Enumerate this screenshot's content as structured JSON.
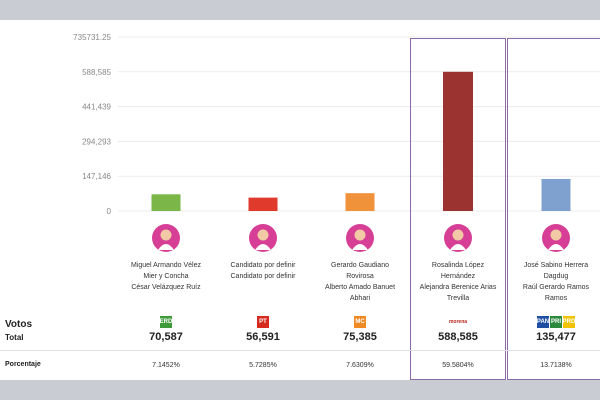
{
  "chart_data": {
    "type": "bar",
    "ylim": [
      0,
      735731.25
    ],
    "y_ticks": [
      0,
      147146,
      294293,
      441439,
      588585,
      735731.25
    ],
    "y_tick_labels": [
      "0",
      "147,146",
      "294,293",
      "441,439",
      "588,585",
      "735731.25"
    ],
    "categories": [
      "Miguel Armando Vélez Mier y Concha / César Velázquez Ruíz",
      "Candidato por definir / Candidato por definir",
      "Gerardo Gaudiano Rovirosa / Alberto Amado Banuet Abhari",
      "Rosalinda López Hernández / Alejandra Berenice Arias Trevilla",
      "José Sabino Herrera Dagdug / Raúl Gerardo Ramos Ramos"
    ],
    "values": [
      70587,
      56591,
      75385,
      588585,
      135477
    ],
    "colors": [
      "#7ab648",
      "#e03a2c",
      "#f0923a",
      "#9b3430",
      "#7fa1cf"
    ]
  },
  "candidates": [
    {
      "name_lines": [
        "Miguel Armando Vélez",
        "Mier y Concha",
        "César Velázquez Ruíz"
      ],
      "votes": "70,587",
      "percent": "7.1452%",
      "logos": [
        {
          "text": "VERDE",
          "color": "#3f9b3a"
        }
      ]
    },
    {
      "name_lines": [
        "Candidato por definir",
        "Candidato por definir"
      ],
      "votes": "56,591",
      "percent": "5.7285%",
      "logos": [
        {
          "text": "PT",
          "color": "#d62a1f"
        }
      ]
    },
    {
      "name_lines": [
        "Gerardo Gaudiano",
        "Rovirosa",
        "Alberto Amado Banuet",
        "Abhari"
      ],
      "votes": "75,385",
      "percent": "7.6309%",
      "logos": [
        {
          "text": "MC",
          "color": "#f08a24"
        }
      ]
    },
    {
      "name_lines": [
        "Rosalinda López",
        "Hernández",
        "Alejandra Berenice Arias",
        "Trevilla"
      ],
      "votes": "588,585",
      "percent": "59.5804%",
      "logos": [
        {
          "text": "morena",
          "color": "#ffffff"
        }
      ]
    },
    {
      "name_lines": [
        "José Sabino Herrera",
        "Dagdug",
        "Raúl Gerardo Ramos",
        "Ramos"
      ],
      "votes": "135,477",
      "percent": "13.7138%",
      "logos": [
        {
          "text": "PAN",
          "color": "#1f4ea3"
        },
        {
          "text": "PRI",
          "color": "#2b8a3e"
        },
        {
          "text": "PRD",
          "color": "#f2c300"
        }
      ]
    }
  ],
  "labels": {
    "votos": "Votos",
    "total": "Total",
    "porcentaje": "Porcentaje"
  }
}
